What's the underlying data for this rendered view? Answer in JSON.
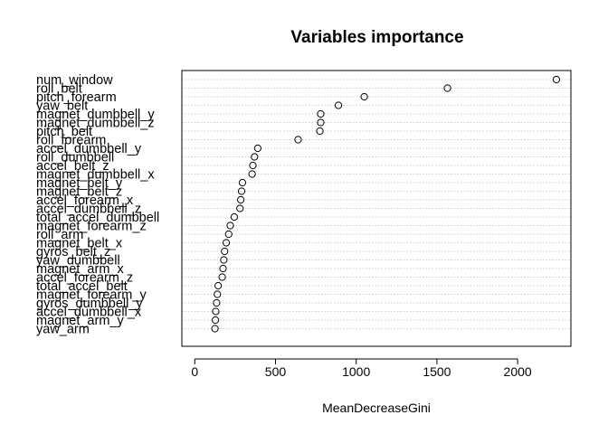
{
  "chart_data": {
    "type": "scatter",
    "title": "Variables importance",
    "xlabel": "MeanDecreaseGini",
    "ylabel": "",
    "xlim": [
      -80,
      2330
    ],
    "xticks": [
      0,
      500,
      1000,
      1500,
      2000
    ],
    "grid": "dotted horizontal lines per variable",
    "marker": "open circle",
    "variables": [
      "num_window",
      "roll_belt",
      "pitch_forearm",
      "yaw_belt",
      "magnet_dumbbell_y",
      "magnet_dumbbell_z",
      "pitch_belt",
      "roll_forearm",
      "accel_dumbbell_y",
      "roll_dumbbell",
      "accel_belt_z",
      "magnet_dumbbell_x",
      "magnet_belt_y",
      "magnet_belt_z",
      "accel_forearm_x",
      "accel_dumbbell_z",
      "total_accel_dumbbell",
      "magnet_forearm_z",
      "roll_arm",
      "magnet_belt_x",
      "gyros_belt_z",
      "yaw_dumbbell",
      "magnet_arm_x",
      "accel_forearm_z",
      "total_accel_belt",
      "magnet_forearm_y",
      "gyros_dumbbell_y",
      "accel_dumbbell_x",
      "magnet_arm_y",
      "yaw_arm"
    ],
    "values": [
      2240,
      1565,
      1050,
      890,
      780,
      780,
      775,
      640,
      390,
      370,
      360,
      355,
      295,
      290,
      285,
      280,
      245,
      220,
      210,
      195,
      185,
      180,
      175,
      170,
      145,
      140,
      135,
      130,
      128,
      125
    ]
  }
}
